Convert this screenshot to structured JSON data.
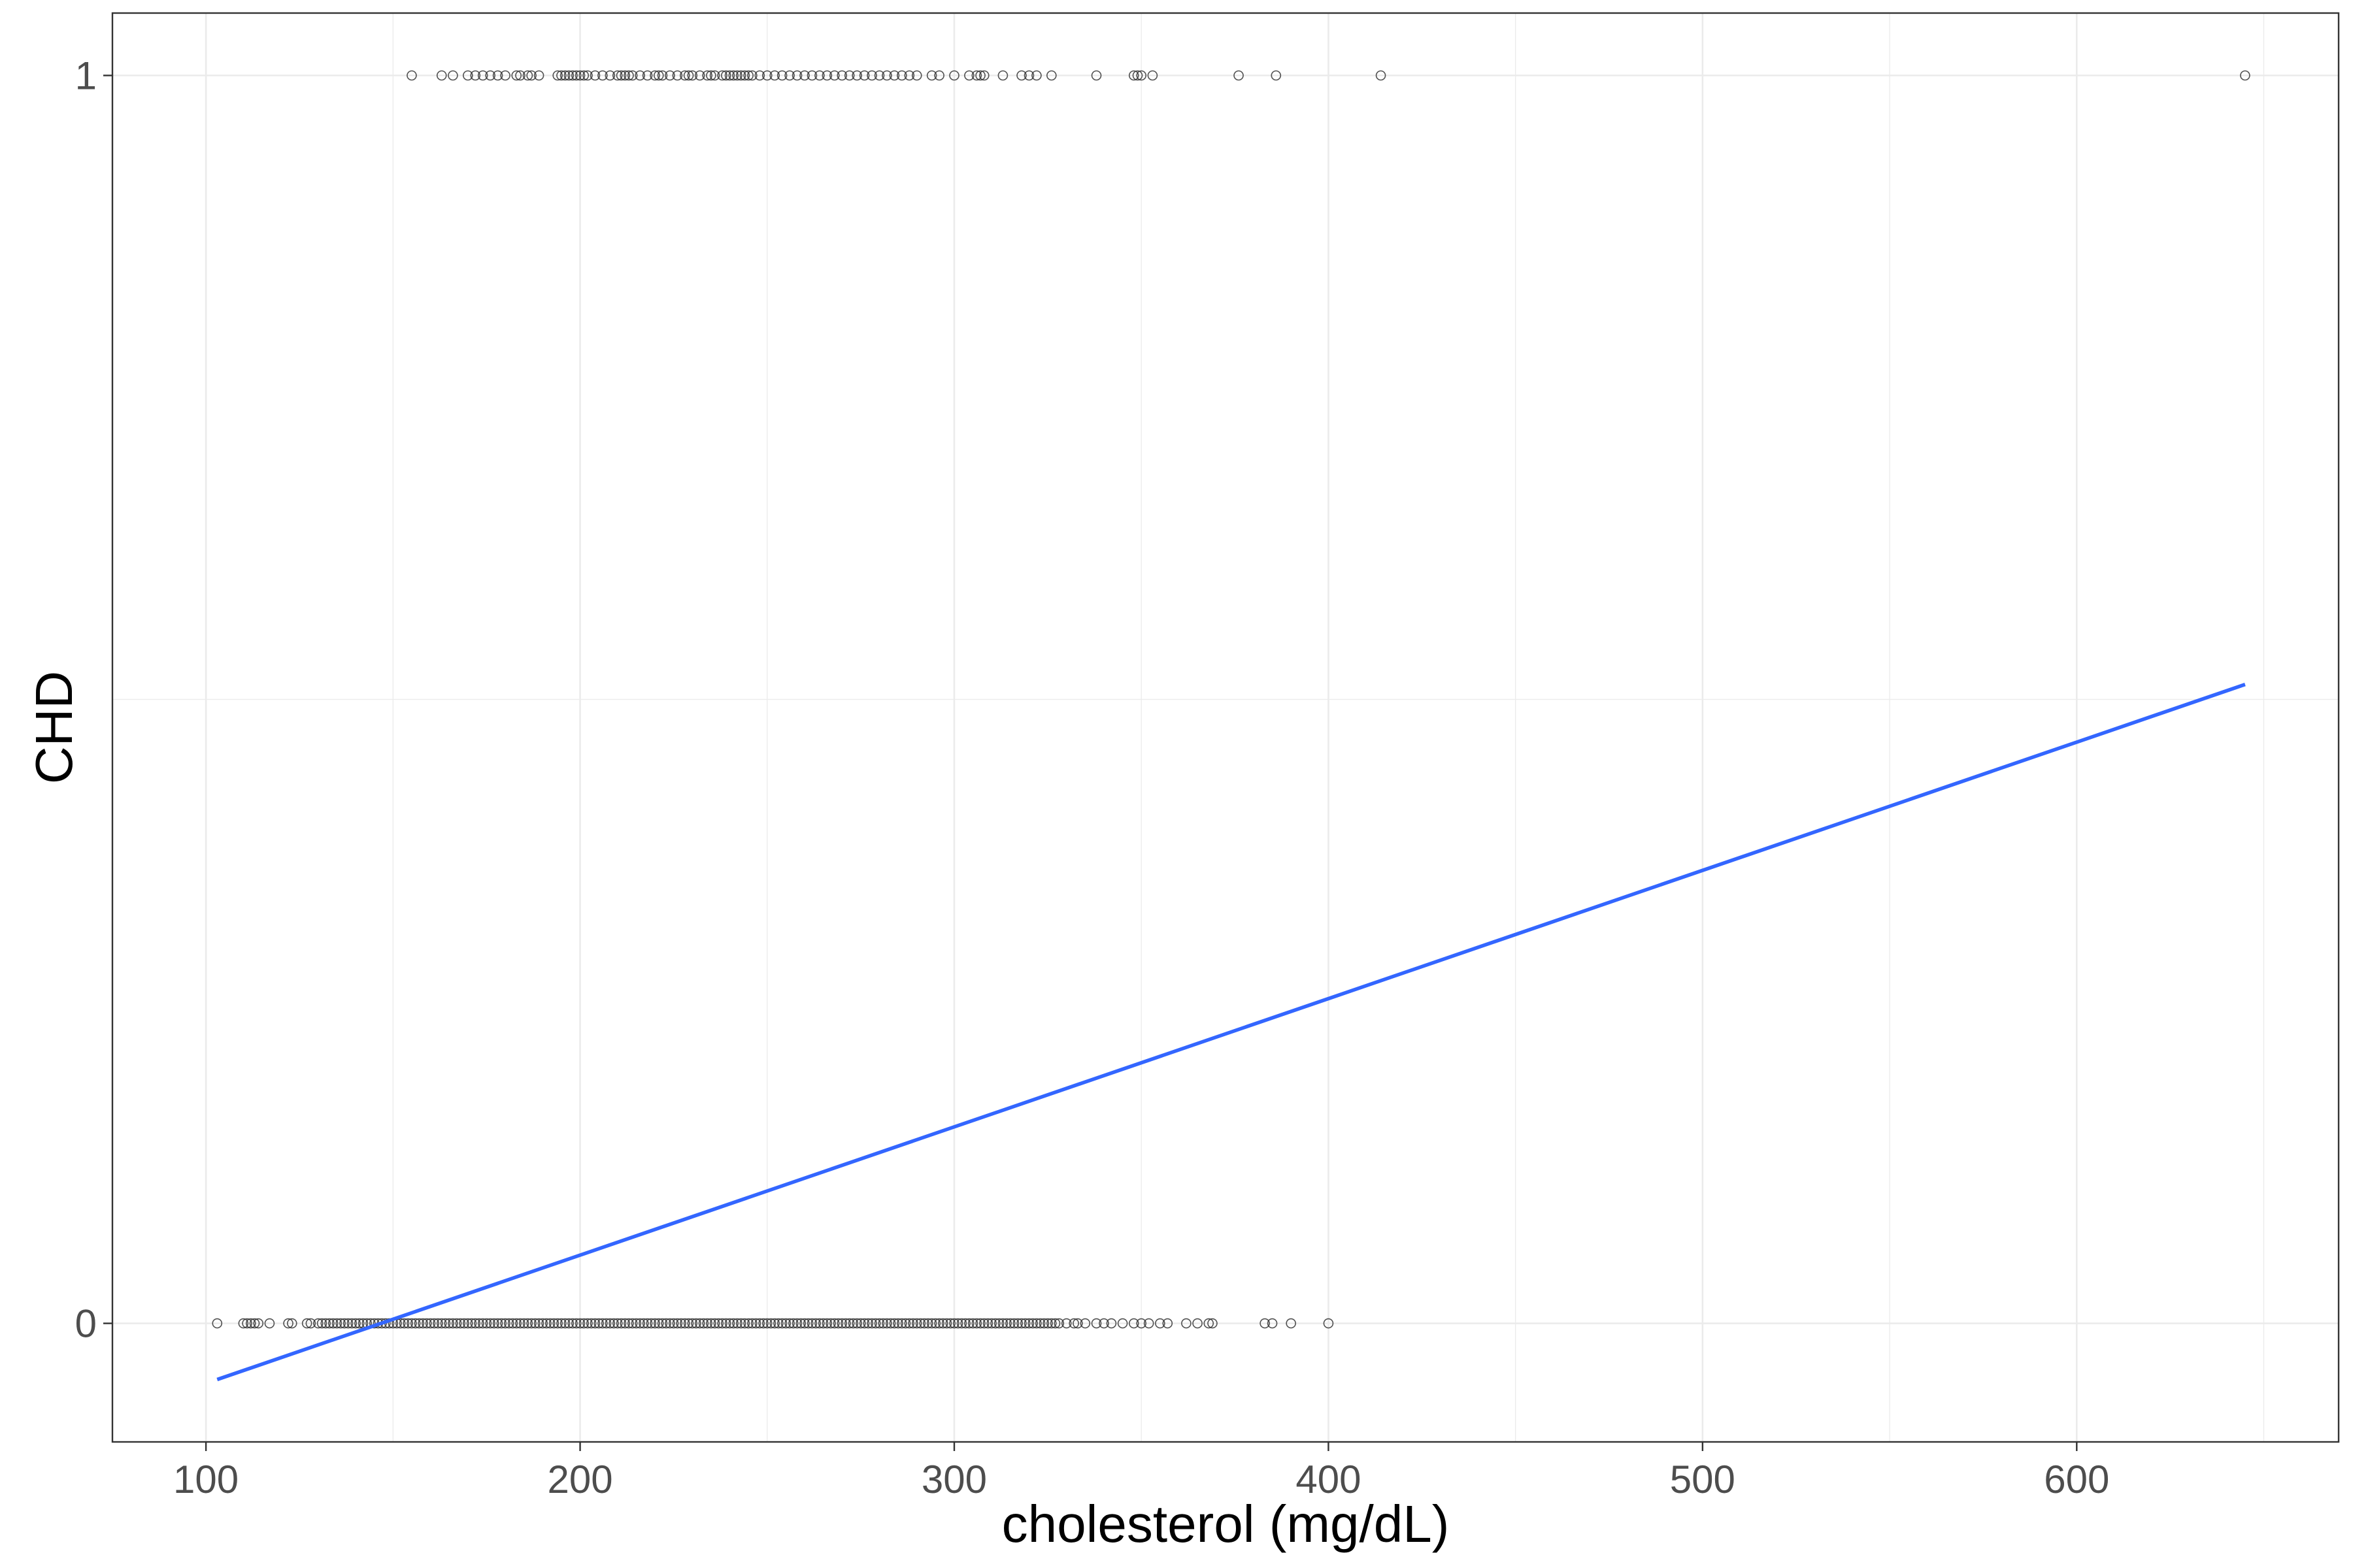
{
  "chart_data": {
    "type": "scatter",
    "title": "",
    "xlabel": "cholesterol (mg/dL)",
    "ylabel": "CHD",
    "xlim": [
      75,
      670
    ],
    "ylim": [
      -0.095,
      1.05
    ],
    "x_ticks": [
      100,
      200,
      300,
      400,
      500,
      600
    ],
    "x_tick_labels": [
      "100",
      "200",
      "300",
      "400",
      "500",
      "600"
    ],
    "y_ticks": [
      0,
      1
    ],
    "y_tick_labels": [
      "0",
      "1"
    ],
    "grid": true,
    "legend": "none",
    "colors": {
      "points": "#333333",
      "fit_line": "#3366FF",
      "grid": "#ebebeb",
      "border": "#333333"
    },
    "series": [
      {
        "kind": "points",
        "y": 1,
        "x": [
          155,
          163,
          166,
          170,
          172,
          174,
          176,
          178,
          180,
          183,
          184,
          186,
          187,
          189,
          194,
          195,
          196,
          197,
          198,
          199,
          200,
          201,
          202,
          204,
          206,
          208,
          210,
          211,
          212,
          213,
          214,
          216,
          218,
          220,
          221,
          222,
          224,
          226,
          228,
          229,
          230,
          232,
          234,
          235,
          236,
          238,
          239,
          240,
          241,
          242,
          243,
          244,
          245,
          246,
          248,
          250,
          252,
          254,
          256,
          258,
          260,
          262,
          264,
          266,
          268,
          270,
          272,
          274,
          276,
          278,
          280,
          282,
          284,
          286,
          288,
          290,
          294,
          296,
          300,
          304,
          306,
          307,
          308,
          313,
          318,
          320,
          322,
          326,
          338,
          348,
          349,
          350,
          353,
          376,
          386,
          414,
          645
        ]
      },
      {
        "kind": "points",
        "y": 0,
        "x": [
          103,
          110,
          111,
          112,
          113,
          114,
          117,
          122,
          123,
          127,
          128,
          130,
          131,
          132,
          133,
          134,
          135,
          136,
          137,
          138,
          139,
          140,
          141,
          142,
          143,
          144,
          145,
          146,
          147,
          148,
          149,
          150,
          151,
          152,
          153,
          154,
          155,
          156,
          157,
          158,
          159,
          160,
          161,
          162,
          163,
          164,
          165,
          166,
          167,
          168,
          169,
          170,
          171,
          172,
          173,
          174,
          175,
          176,
          177,
          178,
          179,
          180,
          181,
          182,
          183,
          184,
          185,
          186,
          187,
          188,
          189,
          190,
          191,
          192,
          193,
          194,
          195,
          196,
          197,
          198,
          199,
          200,
          201,
          202,
          203,
          204,
          205,
          206,
          207,
          208,
          209,
          210,
          211,
          212,
          213,
          214,
          215,
          216,
          217,
          218,
          219,
          220,
          221,
          222,
          223,
          224,
          225,
          226,
          227,
          228,
          229,
          230,
          231,
          232,
          233,
          234,
          235,
          236,
          237,
          238,
          239,
          240,
          241,
          242,
          243,
          244,
          245,
          246,
          247,
          248,
          249,
          250,
          251,
          252,
          253,
          254,
          255,
          256,
          257,
          258,
          259,
          260,
          261,
          262,
          263,
          264,
          265,
          266,
          267,
          268,
          269,
          270,
          271,
          272,
          273,
          274,
          275,
          276,
          277,
          278,
          279,
          280,
          281,
          282,
          283,
          284,
          285,
          286,
          287,
          288,
          289,
          290,
          291,
          292,
          293,
          294,
          295,
          296,
          297,
          298,
          299,
          300,
          301,
          302,
          303,
          304,
          305,
          306,
          307,
          308,
          309,
          310,
          311,
          312,
          313,
          314,
          315,
          316,
          317,
          318,
          319,
          320,
          321,
          322,
          323,
          324,
          325,
          326,
          327,
          328,
          330,
          332,
          333,
          335,
          338,
          340,
          342,
          345,
          348,
          350,
          352,
          355,
          357,
          362,
          365,
          368,
          369,
          383,
          385,
          390,
          400
        ]
      },
      {
        "kind": "line",
        "x": [
          103,
          645
        ],
        "y": [
          -0.045,
          0.512
        ]
      }
    ]
  }
}
